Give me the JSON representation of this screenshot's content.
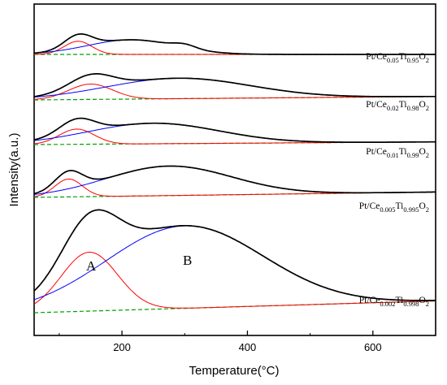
{
  "chart_data": {
    "type": "line",
    "xlabel": "Temperature(°C)",
    "ylabel": "Intensity(a.u.)",
    "xlim": [
      60,
      700
    ],
    "xticks": [
      200,
      400,
      600
    ],
    "yticks_labeled": false,
    "colors": {
      "total": "#000000",
      "peak_A": "#ff0000",
      "peak_B": "#0000ff",
      "baseline": "#00a000"
    },
    "samples": [
      {
        "label": {
          "base": "Pt/Ce",
          "sub1": "0.05",
          "mid": "Ti",
          "sub2": "0.95",
          "end": "O",
          "sub3": "2"
        },
        "peakA": {
          "center": 130,
          "height": 0.9,
          "width": 22
        },
        "peakB": {
          "center": 215,
          "height": 1.0,
          "width": 70
        },
        "extra": {
          "center": 300,
          "height": 0.25,
          "width": 18
        },
        "baseline": [
          0.0,
          0.0
        ]
      },
      {
        "label": {
          "base": "Pt/Ce",
          "sub1": "0.02",
          "mid": "Ti",
          "sub2": "0.98",
          "end": "O",
          "sub3": "2"
        },
        "peakA": {
          "center": 150,
          "height": 0.9,
          "width": 35
        },
        "peakB": {
          "center": 290,
          "height": 1.2,
          "width": 115
        },
        "baseline": [
          0.0,
          0.2
        ]
      },
      {
        "label": {
          "base": "Pt/Ce",
          "sub1": "0.01",
          "mid": "Ti",
          "sub2": "0.99",
          "end": "O",
          "sub3": "2"
        },
        "peakA": {
          "center": 128,
          "height": 0.85,
          "width": 28
        },
        "peakB": {
          "center": 250,
          "height": 1.15,
          "width": 105
        },
        "baseline": [
          0.0,
          0.15
        ]
      },
      {
        "label": {
          "base": "Pt/Ce",
          "sub1": "0.005",
          "mid": "Ti",
          "sub2": "0.995",
          "end": "O",
          "sub3": "2"
        },
        "peakA": {
          "center": 115,
          "height": 1.0,
          "width": 22
        },
        "peakB": {
          "center": 275,
          "height": 1.65,
          "width": 100
        },
        "baseline": [
          0.0,
          0.3
        ]
      },
      {
        "label": {
          "base": "Pt/Ce",
          "sub1": "0.002",
          "mid": "Ti",
          "sub2": "0.998",
          "end": "O",
          "sub3": "2"
        },
        "peakA": {
          "center": 148,
          "height": 2.5,
          "width": 45
        },
        "peakB": {
          "center": 300,
          "height": 3.5,
          "width": 125
        },
        "baseline": [
          0.0,
          0.5
        ],
        "annotations": [
          "A",
          "B"
        ]
      }
    ]
  }
}
